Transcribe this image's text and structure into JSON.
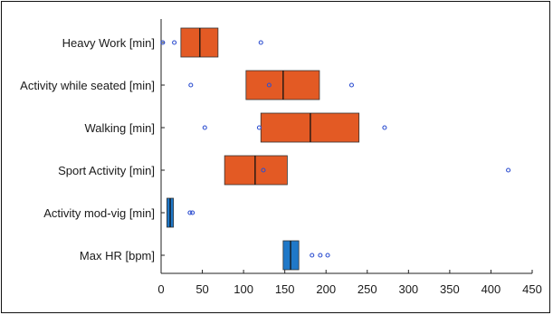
{
  "chart_data": {
    "type": "boxplot",
    "orientation": "horizontal",
    "colors": {
      "orange": "#E35A24",
      "blue": "#1F78C8",
      "outlier": "#2E4FD0",
      "median": "#111111"
    },
    "xlim": [
      0,
      450
    ],
    "xticks": [
      0,
      50,
      100,
      150,
      200,
      250,
      300,
      350,
      400,
      450
    ],
    "xtick_labels": [
      "0",
      "50",
      "100",
      "150",
      "200",
      "250",
      "300",
      "350",
      "400",
      "450"
    ],
    "grid": false,
    "categories": [
      {
        "label": "Heavy Work [min]",
        "color": "orange",
        "q1": 24,
        "median": 47,
        "q3": 69,
        "outliers": [
          2,
          16,
          121
        ]
      },
      {
        "label": "Activity while seated [min]",
        "color": "orange",
        "q1": 103,
        "median": 148,
        "q3": 192,
        "outliers": [
          36,
          131,
          231
        ]
      },
      {
        "label": "Walking [min]",
        "color": "orange",
        "q1": 121,
        "median": 181,
        "q3": 240,
        "outliers": [
          53,
          119,
          271
        ]
      },
      {
        "label": "Sport Activity [min]",
        "color": "orange",
        "q1": 77,
        "median": 114,
        "q3": 153,
        "outliers": [
          124,
          421
        ]
      },
      {
        "label": "Activity mod-vig [min]",
        "color": "blue",
        "q1": 7,
        "median": 11,
        "q3": 15,
        "outliers": [
          35,
          38
        ]
      },
      {
        "label": "Max HR [bpm]",
        "color": "blue",
        "q1": 148,
        "median": 157,
        "q3": 167,
        "outliers": [
          183,
          193,
          202
        ]
      }
    ]
  }
}
